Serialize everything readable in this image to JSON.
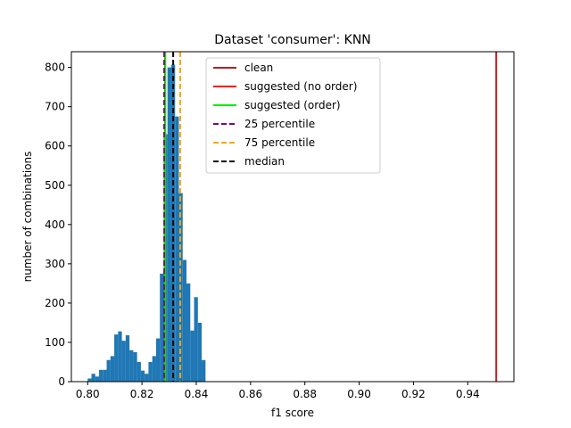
{
  "chart_data": {
    "type": "bar",
    "title": "Dataset 'consumer': KNN",
    "xlabel": "f1 score",
    "ylabel": "number of combinations",
    "xlim": [
      0.794,
      0.957
    ],
    "ylim": [
      0,
      840
    ],
    "xticks": [
      "0.80",
      "0.82",
      "0.84",
      "0.86",
      "0.88",
      "0.90",
      "0.92",
      "0.94"
    ],
    "yticks": [
      "0",
      "100",
      "200",
      "300",
      "400",
      "500",
      "600",
      "700",
      "800"
    ],
    "histogram": {
      "color": "#1f77b4",
      "bin_width": 0.0014,
      "bins": [
        {
          "x": 0.8,
          "count": 8
        },
        {
          "x": 0.8014,
          "count": 20
        },
        {
          "x": 0.8028,
          "count": 13
        },
        {
          "x": 0.8042,
          "count": 30
        },
        {
          "x": 0.8056,
          "count": 30
        },
        {
          "x": 0.807,
          "count": 55
        },
        {
          "x": 0.8084,
          "count": 65
        },
        {
          "x": 0.8098,
          "count": 120
        },
        {
          "x": 0.8112,
          "count": 128
        },
        {
          "x": 0.8126,
          "count": 104
        },
        {
          "x": 0.814,
          "count": 118
        },
        {
          "x": 0.8154,
          "count": 80
        },
        {
          "x": 0.8168,
          "count": 75
        },
        {
          "x": 0.8182,
          "count": 50
        },
        {
          "x": 0.8196,
          "count": 28
        },
        {
          "x": 0.821,
          "count": 20
        },
        {
          "x": 0.8224,
          "count": 50
        },
        {
          "x": 0.8238,
          "count": 65
        },
        {
          "x": 0.8252,
          "count": 110
        },
        {
          "x": 0.8266,
          "count": 275
        },
        {
          "x": 0.828,
          "count": 630
        },
        {
          "x": 0.8294,
          "count": 800
        },
        {
          "x": 0.8308,
          "count": 807
        },
        {
          "x": 0.8322,
          "count": 675
        },
        {
          "x": 0.8336,
          "count": 480
        },
        {
          "x": 0.835,
          "count": 310
        },
        {
          "x": 0.8364,
          "count": 250
        },
        {
          "x": 0.8378,
          "count": 130
        },
        {
          "x": 0.8392,
          "count": 215
        },
        {
          "x": 0.8406,
          "count": 150
        },
        {
          "x": 0.842,
          "count": 55
        }
      ]
    },
    "vlines": [
      {
        "name": "clean",
        "x": 0.9505,
        "color": "#b22222",
        "style": "solid"
      },
      {
        "name": "suggested (no order)",
        "x": 0.8285,
        "color": "#ff0000",
        "style": "solid"
      },
      {
        "name": "suggested (order)",
        "x": 0.8286,
        "color": "#00ee00",
        "style": "solid"
      },
      {
        "name": "25 percentile",
        "x": 0.8282,
        "color": "#800080",
        "style": "dashed"
      },
      {
        "name": "75 percentile",
        "x": 0.8341,
        "color": "#ffa500",
        "style": "dashed"
      },
      {
        "name": "median",
        "x": 0.8315,
        "color": "#000000",
        "style": "dashed"
      }
    ],
    "legend_placement": "upper-center"
  }
}
